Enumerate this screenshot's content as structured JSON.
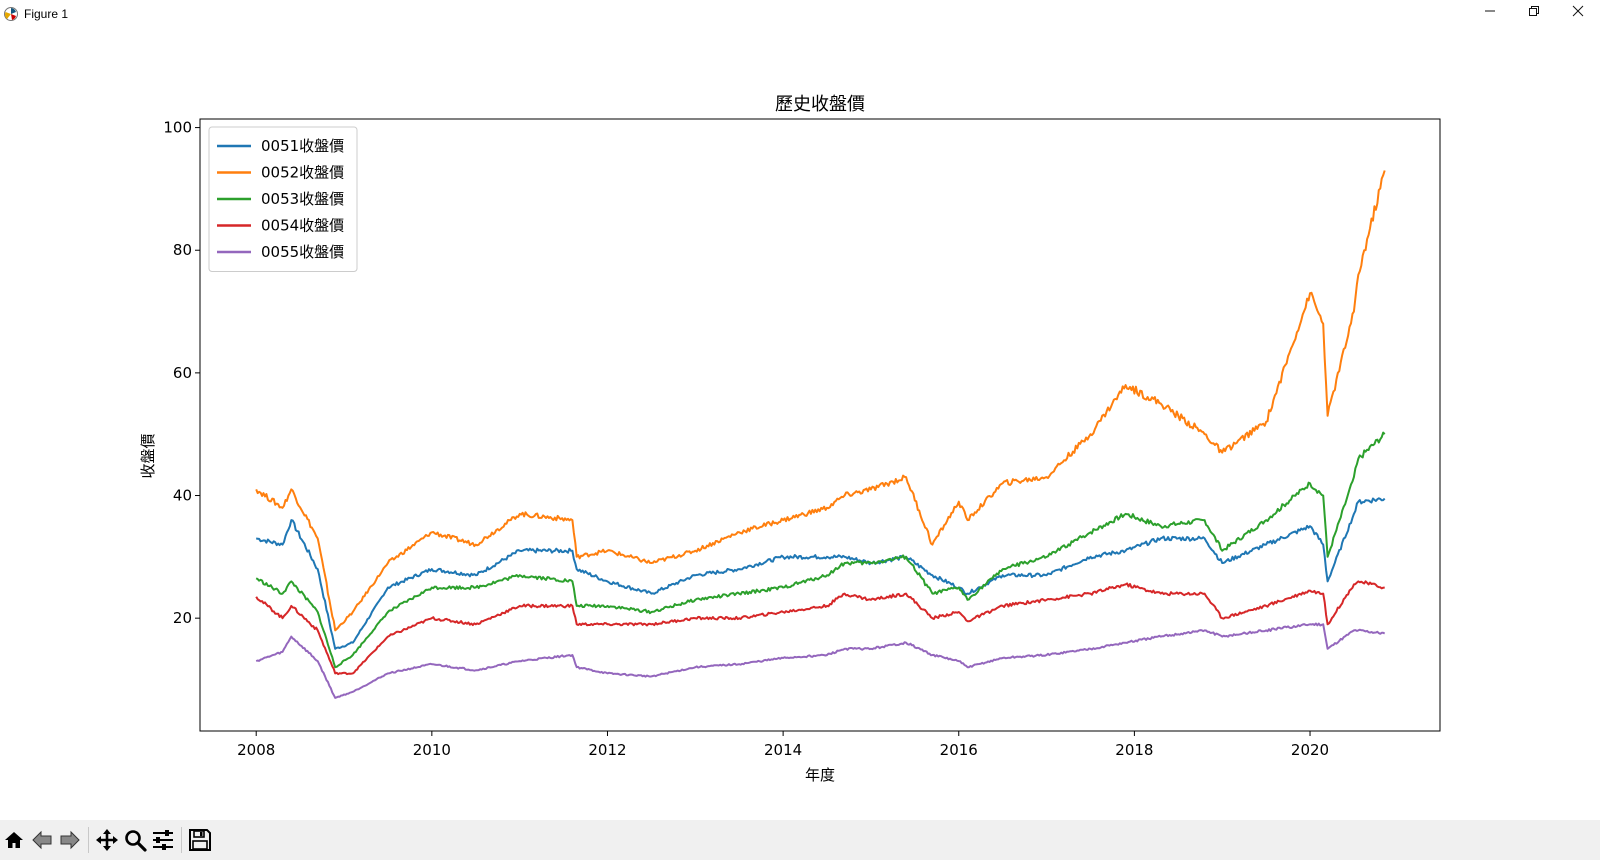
{
  "window": {
    "title": "Figure 1",
    "controls": [
      "minimize",
      "restore",
      "close"
    ]
  },
  "toolbar": {
    "buttons": [
      "home-icon",
      "back-arrow-icon",
      "forward-arrow-icon",
      "pan-move-icon",
      "zoom-magnifier-icon",
      "configure-subplots-icon",
      "save-floppy-icon"
    ]
  },
  "chart_data": {
    "type": "line",
    "title": "歷史收盤價",
    "xlabel": "年度",
    "ylabel": "收盤價",
    "xlim": [
      2007.36,
      2021.48
    ],
    "ylim": [
      1.6,
      101.4
    ],
    "xticks": [
      2008,
      2010,
      2012,
      2014,
      2016,
      2018,
      2020
    ],
    "xtick_labels": [
      "2008",
      "2010",
      "2012",
      "2014",
      "2016",
      "2018",
      "2020"
    ],
    "yticks": [
      20,
      40,
      60,
      80,
      100
    ],
    "ytick_labels": [
      "20",
      "40",
      "60",
      "80",
      "100"
    ],
    "grid": false,
    "legend_position": "upper-left",
    "x": [
      2008.0,
      2008.3,
      2008.4,
      2008.7,
      2008.9,
      2009.1,
      2009.5,
      2010.0,
      2010.5,
      2011.0,
      2011.6,
      2011.65,
      2012.0,
      2012.5,
      2013.0,
      2013.5,
      2014.0,
      2014.5,
      2014.7,
      2015.0,
      2015.4,
      2015.7,
      2016.0,
      2016.1,
      2016.5,
      2017.0,
      2017.5,
      2017.9,
      2018.3,
      2018.8,
      2019.0,
      2019.5,
      2020.0,
      2020.15,
      2020.2,
      2020.5,
      2020.55,
      2020.85
    ],
    "series": [
      {
        "name": "0051收盤價",
        "color": "#1f77b4",
        "values": [
          33,
          32,
          36,
          28,
          15,
          16,
          25,
          28,
          27,
          31,
          31,
          28,
          26,
          24,
          27,
          28,
          30,
          30,
          30,
          29,
          30,
          27,
          25,
          24,
          27,
          27,
          30,
          31,
          33,
          33,
          29,
          32,
          35,
          32,
          26,
          37,
          39,
          39.5
        ]
      },
      {
        "name": "0052收盤價",
        "color": "#ff7f0e",
        "values": [
          41,
          38,
          41,
          33,
          18,
          21,
          29,
          34,
          32,
          37,
          36,
          30,
          31,
          29,
          31,
          34,
          36,
          38,
          40,
          41,
          43,
          32,
          39,
          36,
          42,
          43,
          50,
          58,
          55,
          50,
          47,
          52,
          73,
          68,
          53,
          70,
          76,
          93
        ]
      },
      {
        "name": "0053收盤價",
        "color": "#2ca02c",
        "values": [
          26.5,
          24,
          26,
          21,
          12,
          14,
          21,
          25,
          25,
          27,
          26,
          22,
          22,
          21,
          23,
          24,
          25,
          27,
          29,
          29,
          30,
          24,
          25,
          23,
          28,
          30,
          34,
          37,
          35,
          36,
          31,
          36,
          42,
          40,
          30,
          43,
          46,
          50
        ]
      },
      {
        "name": "0054收盤價",
        "color": "#d62728",
        "values": [
          23.5,
          20,
          22,
          18,
          11,
          11,
          17,
          20,
          19,
          22,
          22,
          19,
          19,
          19,
          20,
          20,
          21,
          22,
          24,
          23,
          24,
          20,
          21,
          19.5,
          22,
          23,
          24,
          25.5,
          24,
          24,
          20,
          22,
          24.5,
          24,
          19,
          25.5,
          26,
          25
        ]
      },
      {
        "name": "0055收盤價",
        "color": "#9467bd",
        "values": [
          13,
          14.5,
          17,
          13,
          7,
          8,
          11,
          12.5,
          11.5,
          13,
          14,
          12,
          11,
          10.5,
          12,
          12.5,
          13.5,
          14,
          15,
          15,
          16,
          14,
          13,
          12,
          13.5,
          14,
          15,
          16,
          17,
          18,
          17,
          18,
          19,
          19,
          15,
          18,
          18,
          17.5
        ]
      }
    ]
  }
}
